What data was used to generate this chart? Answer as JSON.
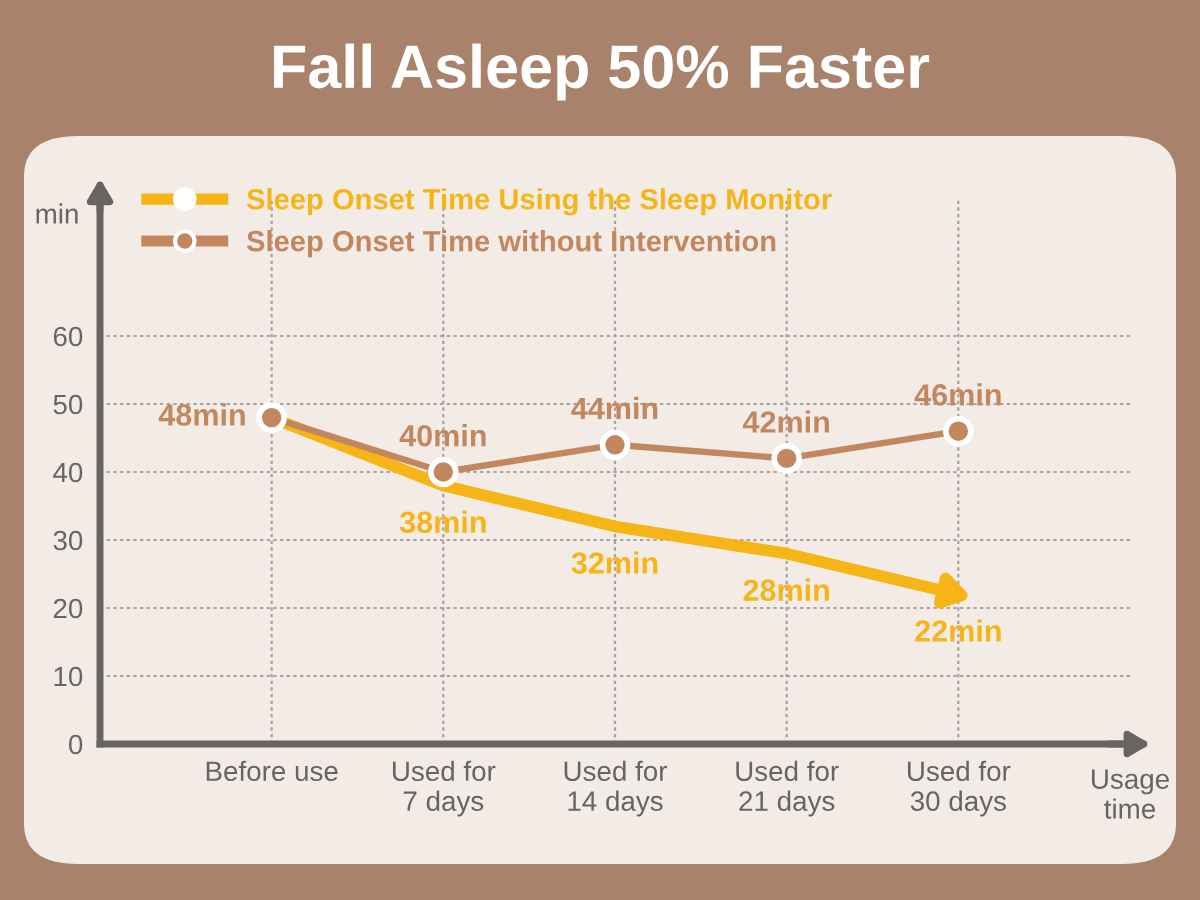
{
  "chart_data": {
    "type": "line",
    "title": "Fall Asleep 50% Faster",
    "xlabel": "Usage\ntime",
    "ylabel": "min",
    "categories": [
      "Before use",
      "Used for\n7 days",
      "Used for\n14 days",
      "Used for\n21 days",
      "Used for\n30 days"
    ],
    "series": [
      {
        "name": "Sleep Onset Time Using the Sleep Monitor",
        "color": "#f6b516",
        "values": [
          48,
          38,
          32,
          28,
          22
        ],
        "value_labels": [
          null,
          "38min",
          "32min",
          "28min",
          "22min"
        ],
        "marker": "none"
      },
      {
        "name": "Sleep Onset Time without Intervention",
        "color": "#c3875f",
        "values": [
          48,
          40,
          44,
          42,
          46
        ],
        "value_labels": [
          "48min",
          "40min",
          "44min",
          "42min",
          "46min"
        ],
        "marker": "circle"
      }
    ],
    "ylim": [
      0,
      80
    ],
    "yticks": [
      0,
      10,
      20,
      30,
      40,
      50,
      60
    ],
    "grid": true,
    "legend": "top left"
  }
}
